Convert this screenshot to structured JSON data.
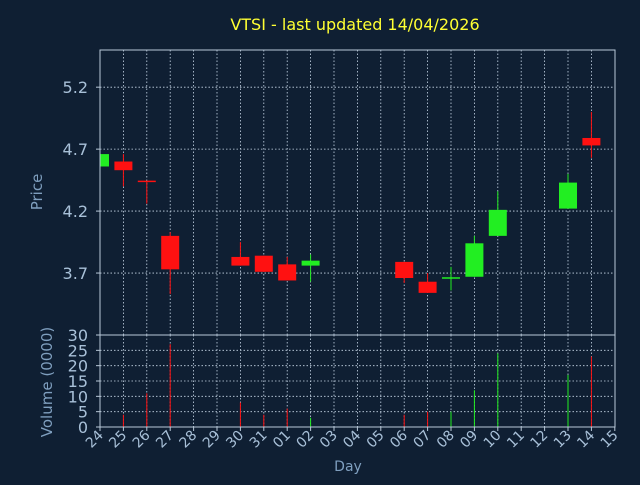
{
  "chart_data": {
    "type": "candlestick",
    "title": "VTSI - last updated 14/04/2026",
    "xlabel": "Day",
    "price_panel": {
      "ylabel": "Price",
      "ylim": [
        3.2,
        5.5
      ],
      "yticks": [
        "3.7",
        "4.2",
        "4.7",
        "5.2"
      ],
      "grid": true
    },
    "volume_panel": {
      "ylabel": "Volume (0000)",
      "ylim": [
        0,
        30
      ],
      "yticks": [
        "0",
        "5",
        "10",
        "15",
        "20",
        "25",
        "30"
      ],
      "grid": true
    },
    "x_tick_labels": [
      "24",
      "25",
      "26",
      "27",
      "28",
      "29",
      "30",
      "31",
      "01",
      "02",
      "03",
      "04",
      "05",
      "06",
      "07",
      "08",
      "09",
      "10",
      "11",
      "12",
      "13",
      "14",
      "15"
    ],
    "candles": [
      {
        "i": 0,
        "open": 4.56,
        "high": 4.66,
        "low": 4.56,
        "close": 4.66,
        "volume": 0
      },
      {
        "i": 1,
        "open": 4.6,
        "high": 4.66,
        "low": 4.4,
        "close": 4.53,
        "volume": 4
      },
      {
        "i": 2,
        "open": 4.44,
        "high": 4.44,
        "low": 4.26,
        "close": 4.43,
        "volume": 11
      },
      {
        "i": 3,
        "open": 4.0,
        "high": 4.03,
        "low": 3.53,
        "close": 3.73,
        "volume": 27
      },
      {
        "i": 6,
        "open": 3.83,
        "high": 3.95,
        "low": 3.76,
        "close": 3.76,
        "volume": 8
      },
      {
        "i": 7,
        "open": 3.84,
        "high": 3.84,
        "low": 3.71,
        "close": 3.71,
        "volume": 4
      },
      {
        "i": 8,
        "open": 3.77,
        "high": 3.83,
        "low": 3.64,
        "close": 3.64,
        "volume": 6
      },
      {
        "i": 9,
        "open": 3.76,
        "high": 3.85,
        "low": 3.63,
        "close": 3.8,
        "volume": 3
      },
      {
        "i": 13,
        "open": 3.79,
        "high": 3.79,
        "low": 3.62,
        "close": 3.66,
        "volume": 4
      },
      {
        "i": 14,
        "open": 3.63,
        "high": 3.7,
        "low": 3.54,
        "close": 3.54,
        "volume": 5
      },
      {
        "i": 15,
        "open": 3.66,
        "high": 3.75,
        "low": 3.56,
        "close": 3.66,
        "volume": 5
      },
      {
        "i": 16,
        "open": 3.67,
        "high": 4.0,
        "low": 3.67,
        "close": 3.94,
        "volume": 12
      },
      {
        "i": 17,
        "open": 4.0,
        "high": 4.36,
        "low": 4.0,
        "close": 4.21,
        "volume": 24
      },
      {
        "i": 20,
        "open": 4.22,
        "high": 4.5,
        "low": 4.22,
        "close": 4.43,
        "volume": 17
      },
      {
        "i": 21,
        "open": 4.79,
        "high": 5.0,
        "low": 4.63,
        "close": 4.73,
        "volume": 23
      }
    ],
    "colors": {
      "background": "#0f1f33",
      "axis": "#b8c8d8",
      "grid": "#c8d8e8",
      "title": "#ffff33",
      "label": "#7f9fbf",
      "tick": "#a8c0d8",
      "up": "#22ee22",
      "down": "#ff1111"
    }
  }
}
